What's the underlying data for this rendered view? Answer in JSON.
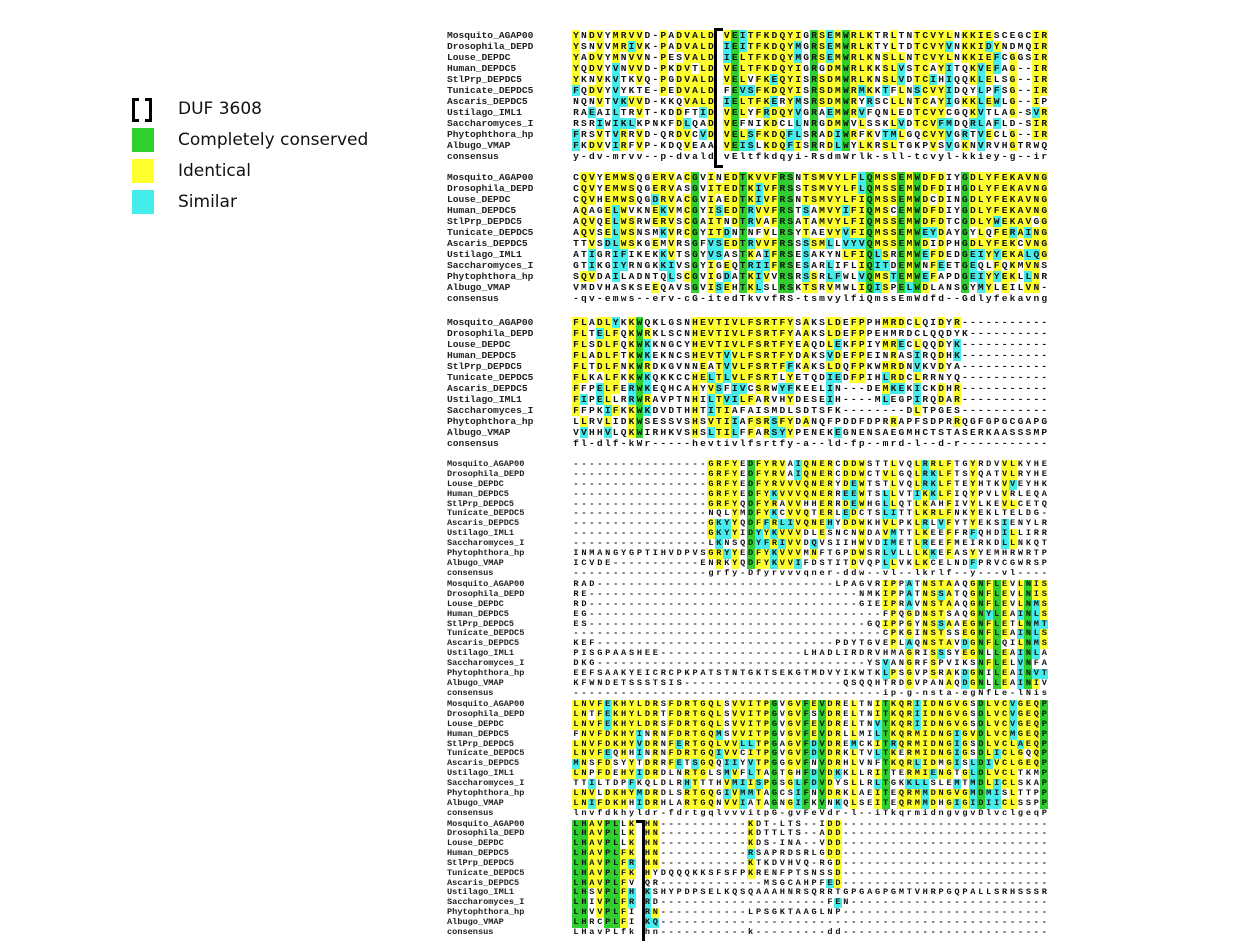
{
  "legend": {
    "items": [
      {
        "label": "DUF 3608",
        "icon": "bracket-icon"
      },
      {
        "label": "Completely conserved",
        "color": "#2fcf2f"
      },
      {
        "label": "Identical",
        "color": "#ffff2e"
      },
      {
        "label": "Similar",
        "color": "#45ecec"
      }
    ]
  },
  "names": [
    "Mosquito_AGAP00",
    "Drosophila_DEPD",
    "Louse_DEPDC",
    "Human_DEPDC5",
    "StlPrp_DEPDC5",
    "Tunicate_DEPDC5",
    "Ascaris_DEPDC5",
    "Ustilago_IML1",
    "Saccharomyces_I",
    "Phytophthora_hp",
    "Albugo_VMAP",
    "consensus"
  ],
  "blocks": [
    {
      "rows": [
        "YNDVYMRVVD-PADVALD VEITFKDQYIGRSEMWRLKTRLTNTCVYLNKKIESCEGCIR",
        "YSNVVMRIVK-PADVALD IEITFKDQYMGRSEMWRLKTYLTDTCVYVNKKIDYNDMQIR",
        "YADVYMNVVN-PESVALD IELTFKDQYMGRSEMWRLKNSLLNTCVYLNKKIEFCGGSIR",
        "YQDVYVNVVD-PKDVTLD VELTFKDQYIGRGDMWRLKKSLVSTCAYITQKVEFAG--IR",
        "YKNVKVTKVQ-PGDVALD VELVFKEQYISRSDMWRLKNSLVDTCIHIQQKLELSG--IR",
        "FQDVYVYKTE-PEDVALD FEVSFKDQYISRSDMWRMKKTFLNSCVYIDQYLPFSG--IR",
        "NQNVTVKVVD-KKQVALD IELTFKERYMSRSDMWRYRSCLLNTCAYIGKKLEWLG--IP",
        "RAEAILTRVT-KDDFTID VELYFRDQYVGRAEMWRVFQNLEDTCVYCGQKVTLAG-SVR",
        "RSRIWIKLKPNKFDLQAD VEFNIKDCLLNRGDMWVLSSKLVDTCVFMDQRLAFLD-SIR",
        "FRSVTVRRVD-QRDVCVD VELSFKDQFLSRADIWRFKVTMLGQCVYVGRTVECLG--IR",
        "FKDVVIRFVP-KDQVEAA VEISLKDQFISRRDLWYLKRSLTGKPVSVGKNVRVHGTRWQ",
        "y-dv-mrvv--p-dvald vEltfkdqyi-RsdmWrlk-sll-tcvyl-kkiey-g--ir"
      ]
    },
    {
      "rows": [
        "CQVYEMWSQGERVACGVINEDTKVVFRSNTSMVYLFLQMSSEMWDFDIYGDLYFEKAVNG",
        "CQVYEMWSQGERVASGVITEDTKIVFRSSTSMVYLFLQMSSEMWDFDIHGDLYFEKAVNG",
        "CQVHEMWSQGDRVACGVIAEDTKIVFRSNTSMVYLFIQMSSEMWDCDINGDLYFEKAVNG",
        "AQAGELWVKNEKVMCGYISEDTRVVFRSTSAMVYIFIQMSCEMWDFDIYGDLYFEKAVNG",
        "AQVQELWSRWERVSCGAITNDTRVAFRSATAMVYLFIQMSSEMWDFDTCGDLYWEKAVGG",
        "AQVSELWSNSMKVRCGYITDNTNFVLRSYTAEVYVFIQMSSEMWEYDAYGYLQFERAING",
        "TTVSDLWSKGEMVRSGFVSEDTRVVFRSSSSMLLVYVQMSSEMWDIDPHGDLYFEKCVNG",
        "ATIGRIFIKEKKVTSGYVSASTKAIFRSESAKYNLFIQLSREMWEFDEDGEIYYEKALQG",
        "GTIKGIYRNGKKIVSGYIGEQTRIIFRSESARLIFLIQITDEMWNFEETGEQLFQKMVNS",
        "SQVDAILADNTQLSCGVIGDATKIVVRSRSSRLFWLVQMSTEMWEFAPDGEIYYEKLLNR",
        "VMDVHASKSEEQAVSGVISEHTKLSLRSKTSRVMWLIQISPELWDLANSGYMYLEILVN-",
        "-qv-emws--erv-cG-itedTkvvfRS-tsmvylfiQmssEmWdfd--Gdlyfekavng"
      ]
    },
    {
      "rows": [
        "FLADLYKKWQKLGSNHEVTIVLFSRTFYSAKSLDEFPPHMRDCLQIDYR-----------",
        "FLTELFQKWRKLSCNHEVTIVLFSRTFYAAKSLDEFPPEHMRDCLQQDYK----------",
        "FLSDLFQKWKKNGCYHEVTIVLFSRTFYEAQDLEKFPIYMRECLQQDYK-----------",
        "FLADLFTKWKEKNCSHEVTVVLFSRTFYDAKSVDEFPEINRASIRQDHK-----------",
        "FLTDLFNKWRDKGVNNEATVVLFSRTFFKAKSLDQFPKWMRDNVKVDYA-----------",
        "FLKALFKKWKQKKCCHELTLVLFSRTLYETQDIEDFPIHLRDCLRRNYQ-----------",
        "FFPELFERWKEQHCAHYVSFIVCSRWYFKEELIN---DEMKEKICKDHR-----------",
        "FIPELLRRWRAVPTNHILTVILFARVHYDESEIH----MLEGPIRQDAR-----------",
        "FFPKIFKKWKDVDTHHTITIAFAISMDLSDTSFK--------DLTPGES-----------",
        "LLRVLIDKWSESSVSHSVTIIAFSRSFYDANQFPDDFDPRRAPFSDPRRQGFGPGCGAPG",
        "VVHHVLQKWIRHKVSHSLTILFFARSYYPENEKEGNENSAEGMHCTSTASERKAASSSMP",
        "fl-dlf-kWr-----hevtivlfsrtfy-a--ld-fp--mrd-l--d-r-----------"
      ]
    },
    {
      "rows": [
        "-----------------GRFYEDFYRVAIQNERCDDWSTTLVQLRRLFTGYRDVVLKYHE",
        "-----------------GRFYEDFYRVAIQNERCDDWCTVLGQLRKLFTSYQATVLRYHE",
        "-----------------GRFYEDFYRVVVQNERYDEWTSTLVQLRKLFTEYHTKVVEYHK",
        "-----------------GRFYEDFYKVVVQNERREEWTSLLVTIKKLFIQYPVLVRLEQA",
        "-----------------GRFYQDFYRAVVHHERRDEWHGLLQTLKAHFIVYLKEVLCETQ",
        "-----------------NQLYMDFYKCVVQTERLEDCTSLITTLKRLFNKYEKLTELDG-",
        "-----------------GKYYQDFFRLIVQNEHYDDWKHVLPKLRLVFYTYEKSIENYLR",
        "-----------------GKYYIDYYKVVVDLESNCNWDAVMTTLKEEFFRFQHDILLIRR",
        "-----------------LKNSQDYFRIVVDQVSIIHWVDIMETLREEFMEIRKDLLNKQT",
        "INMANGYGPTIHVDPVSGRYYEDFYKVVVMNFTGPDWSRLVLLLKKEFASYYEMHRWRTP",
        "ICVDE-----------ENRKYQDFYKVVIFDSTITDVQPLLVKLKCELNDFPRVCGWRSP",
        "-----------------grfy-Dfyrvvvqner-ddw--vl--lkrlf--y---vl----"
      ]
    },
    {
      "rows": [
        "RAD------------------------------LPAGVRIPPATNSTAAQGNFLEVLNIS",
        "RE----------------------------------NMKIPPATNSSATQGNFLEVLNIS",
        "RD----------------------------------GIEIPRAVNSTAAQGNFLEVLNMS",
        "EG-------------------------------------FPQGDNSTSAQGNYLEAINLS",
        "ES-----------------------------------GQIPPGYNSSAAEGNFLETLNMT",
        "---------------------------------------CPKGINSTSSEGNFLEAINLS",
        "KEF------------------------------PDYTGVEPLAQNSTAVDGNFLQILNMS",
        "PISGPAASHEE------------------LHADLIRDRVHMAGRISSSYEGNLLEAINLA",
        "DKG----------------------------------YSVANGRFSPVIKSNFLELVNFA",
        "EEFSAAKYEICRCPKPATSTNTGKTSEKGTMDVYIKWTKLPSGVPSRAKDGNILEAINVT",
        "KFWNDETSSSTSIS--------------------QSQQHTRDGVPANAQDGNLLEAINIV",
        "---------------------------------------ip-g-nsta-egNfLe-lNis"
      ]
    },
    {
      "rows": [
        "LNVFEKHYLDRSFDRTGQLSVVITPGVGVFEVDRELTNITKQRIIDNGVGSDLVCVGEQP",
        "LNTFEKHYLDRTFDRTGQLSVVITPGVGVFSVDRELTNITKQRIIDNGVGSDLVCVGEQP",
        "LNVFEKHYLDRSFDRTGQLSVVITPGVGVFEVDRELTNVTKQRIIDNGVGSDLVCVGEQP",
        "FNVFDKHYINRNFDRTGQMSVVITPGVGVFEVDRLLMILTKQRMIDNGIGVDLVCMGEQP",
        "LNVFDKHYVDRNFERTGQLVVLLTPGAGVFDVDREMCKITRQRMIDNGIGSDLVCLAEQP",
        "LNVFEQHHINRNFDRTGQIVVCITPGVGVFDVDRKLTVLTKERMIDNGIGSDLICLGQQP",
        "MNSFDSYYTDRRFETSGQQIIYVTPGGGVFNVDRHLVNFTKQRLIDMGISLDIVCLGEQP",
        "LNPFDEHYIDRDLNRTGLSMVFLTAGTGHFDVDKKLLRITTERMIENGTGLDLVCLTKMP",
        "TTILTDPFKQLDLRHTTTHVMIISPGSGLFDVDYSLLRLTGKKLLSLEMTMDLICLSKAP",
        "LNVLDKHYMDRDLSRTGQGIVMMTAGCSIFNVDRKLAEITEQRMMDNGVGMDMISLTTPP",
        "LNIFDKHHIDRHLARTGQNVVIATAGNGIFKVNKQLSEITEQRMMDHGIGIDIICLSSPP",
        "lnvfdkhyldr-fdrtgqlvvvitpG-gvFeVdr-l--iTkqrmidngvgvDlvclgeqP"
      ]
    },
    {
      "rows": [
        "LHAVPLLK HN-----------KDT-LTS--IDD--------------------------",
        "LHAVPLLK HN-----------KDTTLTS--ADD--------------------------",
        "LHAVPLLK HN-----------KDS-INA--VDD--------------------------",
        "LHAVPLFK HN-----------RSAPRDSRLGDD--------------------------",
        "LHAVPLFR HN-----------KTKDVHVQ-RGD--------------------------",
        "LHAVPLFK HYDQQQKKSFSFPKRENFPTSNSSD--------------------------",
        "LHAVPLFV QR-------------MSGCAHPFED--------------------------",
        "LHSVPLFH KSHYPDPSELKQSQAAAHNRSQRRTGPGAGPGMTVHRPGQPALLSRHSSSR",
        "LHIVPLFR RD---------------------FEN-------------------------",
        "LHVVPLFI RN-----------LPSGKTAAGLNP--------------------------",
        "LHRCPLFI KQ-------------------------------------------------",
        "LHavPLfk hn-----------k---------dd--------------------------"
      ]
    }
  ],
  "colors": {
    "conserved": "#2fcf2f",
    "identical": "#ffff2e",
    "similar": "#45ecec"
  }
}
